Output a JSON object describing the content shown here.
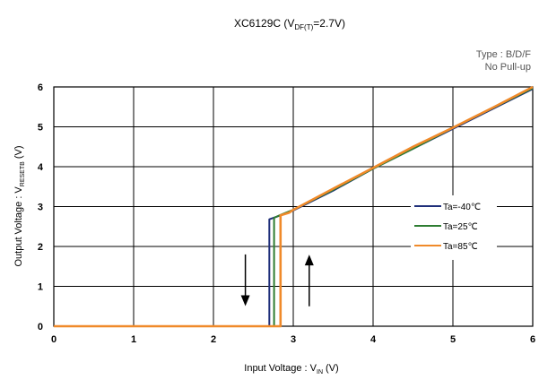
{
  "chart_data": {
    "type": "line",
    "title": "XC6129C (V",
    "title_sub": "DF(T)",
    "title_tail": "=2.7V)",
    "note_line1": "Type : B/D/F",
    "note_line2": "No Pull-up",
    "ylabel_main": "Output Voltage : V",
    "ylabel_sub": "RESETB",
    "ylabel_tail": " (V)",
    "xlabel_main": "Input Voltage : V",
    "xlabel_sub": "IN",
    "xlabel_tail": " (V)",
    "xlim": [
      0,
      6
    ],
    "ylim": [
      0,
      6
    ],
    "xticks": [
      "0",
      "1",
      "2",
      "3",
      "4",
      "5",
      "6"
    ],
    "yticks": [
      "0",
      "1",
      "2",
      "3",
      "4",
      "5",
      "6"
    ],
    "grid": true,
    "legend_position": "right",
    "series": [
      {
        "name": "Ta=-40℃",
        "color": "#1f2f7a",
        "points": [
          [
            0,
            0
          ],
          [
            2.7,
            0
          ],
          [
            2.7,
            2.68
          ],
          [
            2.8,
            2.75
          ],
          [
            3.0,
            2.9
          ],
          [
            3.5,
            3.4
          ],
          [
            4.0,
            3.95
          ],
          [
            4.5,
            4.45
          ],
          [
            5.0,
            4.95
          ],
          [
            5.5,
            5.45
          ],
          [
            6.0,
            5.95
          ]
        ]
      },
      {
        "name": "Ta=25℃",
        "color": "#2e7d32",
        "points": [
          [
            0,
            0
          ],
          [
            2.76,
            0
          ],
          [
            2.76,
            2.72
          ],
          [
            2.85,
            2.8
          ],
          [
            3.0,
            2.92
          ],
          [
            3.5,
            3.42
          ],
          [
            4.0,
            3.95
          ],
          [
            4.5,
            4.45
          ],
          [
            5.0,
            4.97
          ],
          [
            5.5,
            5.47
          ],
          [
            6.0,
            5.97
          ]
        ]
      },
      {
        "name": "Ta=85℃",
        "color": "#f08a2a",
        "points": [
          [
            0,
            0
          ],
          [
            2.84,
            0
          ],
          [
            2.84,
            2.78
          ],
          [
            2.95,
            2.85
          ],
          [
            3.0,
            2.92
          ],
          [
            3.5,
            3.45
          ],
          [
            4.0,
            3.97
          ],
          [
            4.5,
            4.5
          ],
          [
            5.0,
            4.98
          ],
          [
            5.5,
            5.48
          ],
          [
            6.0,
            6.0
          ]
        ]
      }
    ],
    "arrows": [
      {
        "direction": "down",
        "x": 2.4
      },
      {
        "direction": "up",
        "x": 3.2
      }
    ]
  }
}
